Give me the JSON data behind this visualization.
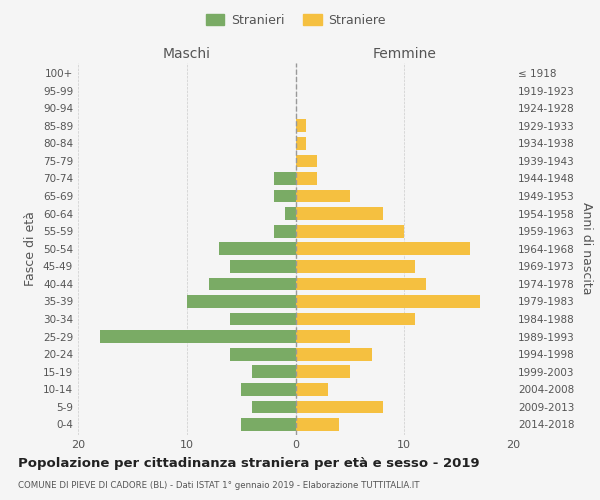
{
  "age_groups": [
    "0-4",
    "5-9",
    "10-14",
    "15-19",
    "20-24",
    "25-29",
    "30-34",
    "35-39",
    "40-44",
    "45-49",
    "50-54",
    "55-59",
    "60-64",
    "65-69",
    "70-74",
    "75-79",
    "80-84",
    "85-89",
    "90-94",
    "95-99",
    "100+"
  ],
  "birth_years": [
    "2014-2018",
    "2009-2013",
    "2004-2008",
    "1999-2003",
    "1994-1998",
    "1989-1993",
    "1984-1988",
    "1979-1983",
    "1974-1978",
    "1969-1973",
    "1964-1968",
    "1959-1963",
    "1954-1958",
    "1949-1953",
    "1944-1948",
    "1939-1943",
    "1934-1938",
    "1929-1933",
    "1924-1928",
    "1919-1923",
    "≤ 1918"
  ],
  "maschi": [
    5,
    4,
    5,
    4,
    6,
    18,
    6,
    10,
    8,
    6,
    7,
    2,
    1,
    2,
    2,
    0,
    0,
    0,
    0,
    0,
    0
  ],
  "femmine": [
    4,
    8,
    3,
    5,
    7,
    5,
    11,
    17,
    12,
    11,
    16,
    10,
    8,
    5,
    2,
    2,
    1,
    1,
    0,
    0,
    0
  ],
  "color_maschi": "#7aab65",
  "color_femmine": "#f5c040",
  "background_color": "#f5f5f5",
  "title": "Popolazione per cittadinanza straniera per età e sesso - 2019",
  "subtitle": "COMUNE DI PIEVE DI CADORE (BL) - Dati ISTAT 1° gennaio 2019 - Elaborazione TUTTITALIA.IT",
  "header_left": "Maschi",
  "header_right": "Femmine",
  "ylabel_left": "Fasce di età",
  "ylabel_right": "Anni di nascita",
  "legend_stranieri": "Stranieri",
  "legend_straniere": "Straniere",
  "xlim": 20,
  "grid_color": "#cccccc",
  "text_color": "#555555",
  "title_color": "#222222"
}
